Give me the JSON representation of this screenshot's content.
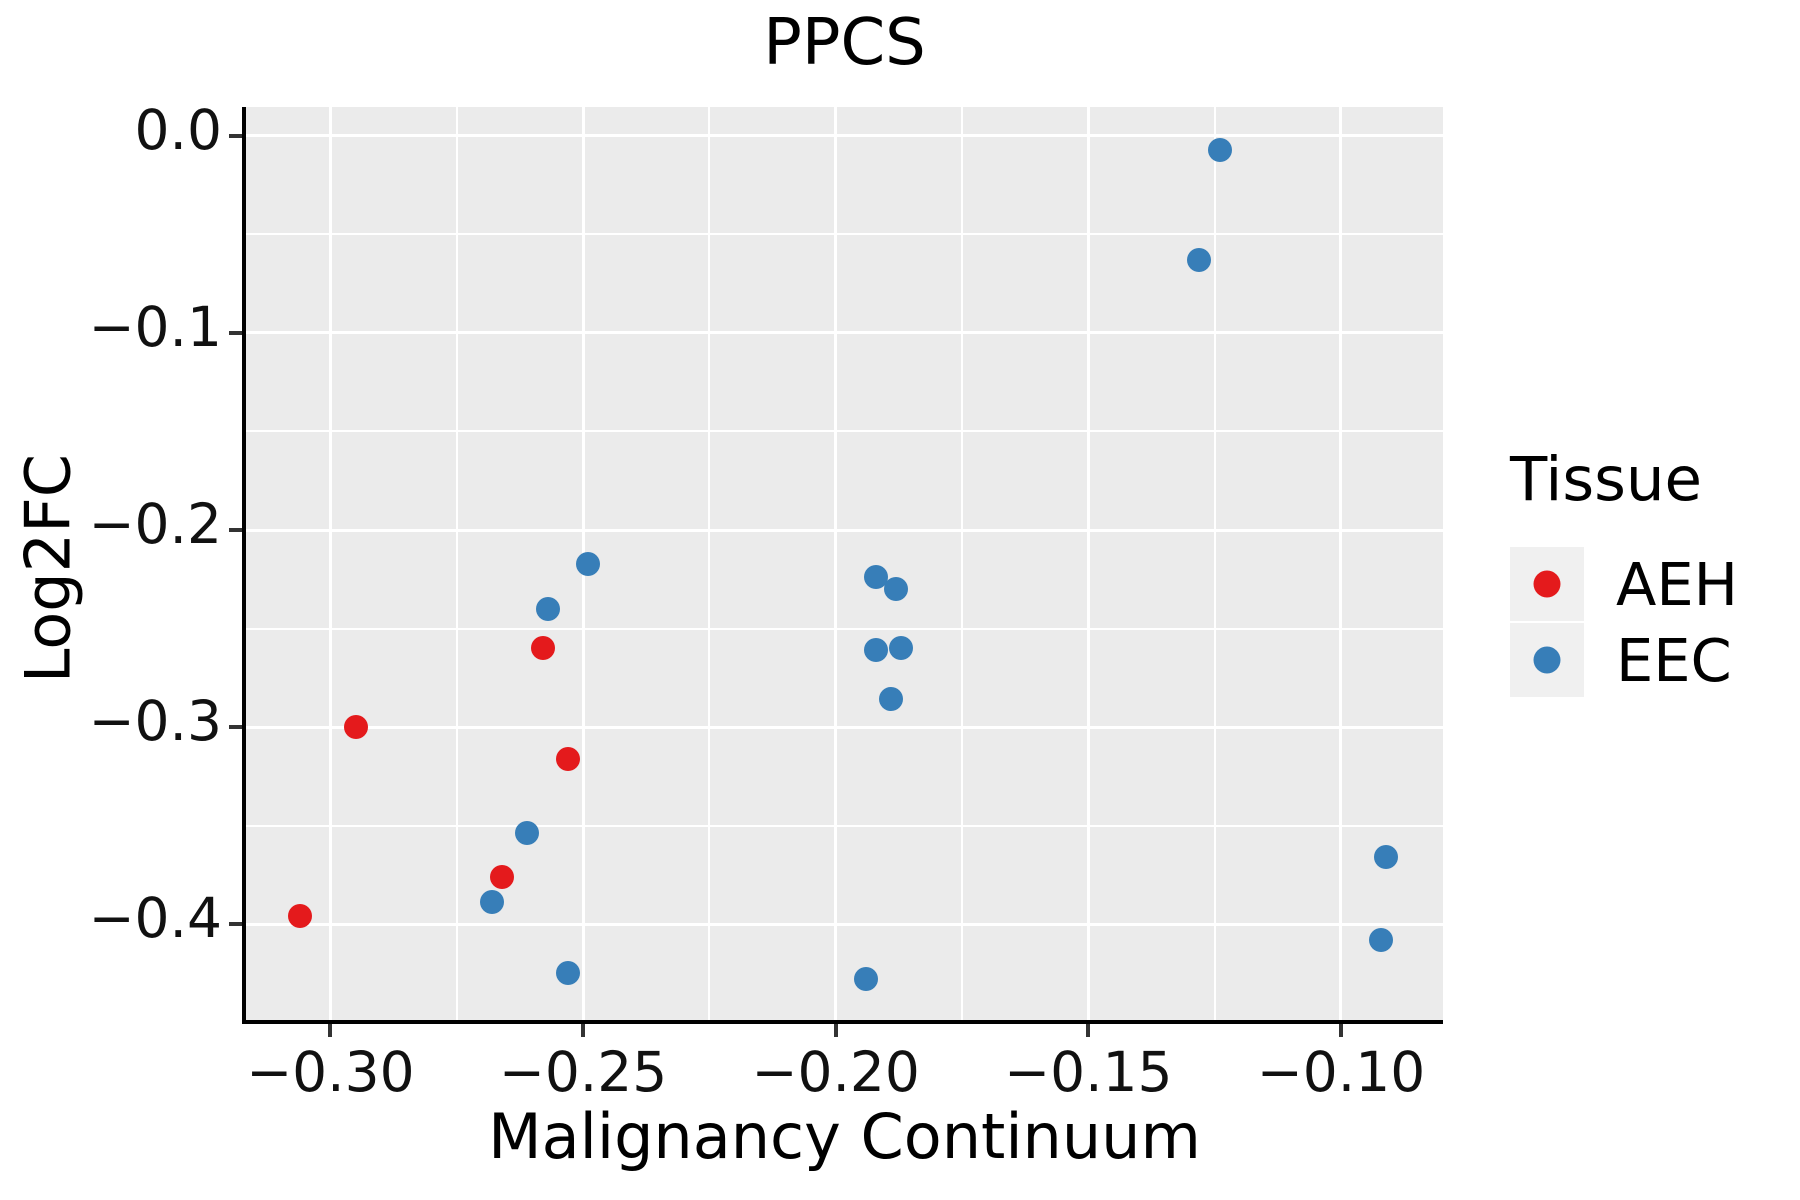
{
  "title": "PPCS",
  "axes": {
    "x": {
      "label": "Malignancy Continuum",
      "lim": [
        -0.3167,
        -0.0798
      ],
      "ticks": [
        {
          "value": -0.3,
          "label": "−0.30"
        },
        {
          "value": -0.25,
          "label": "−0.25"
        },
        {
          "value": -0.2,
          "label": "−0.20"
        },
        {
          "value": -0.15,
          "label": "−0.15"
        },
        {
          "value": -0.1,
          "label": "−0.10"
        }
      ],
      "minor": [
        -0.275,
        -0.225,
        -0.175,
        -0.125
      ]
    },
    "y": {
      "label": "Log2FC",
      "lim": [
        -0.4487,
        0.0147
      ],
      "ticks": [
        {
          "value": 0.0,
          "label": "0.0"
        },
        {
          "value": -0.1,
          "label": "−0.1"
        },
        {
          "value": -0.2,
          "label": "−0.2"
        },
        {
          "value": -0.3,
          "label": "−0.3"
        },
        {
          "value": -0.4,
          "label": "−0.4"
        }
      ],
      "minor": [
        -0.05,
        -0.15,
        -0.25,
        -0.35
      ]
    }
  },
  "legend": {
    "title": "Tissue",
    "items": [
      {
        "label": "AEH",
        "color": "#E41A1C"
      },
      {
        "label": "EEC",
        "color": "#377EB8"
      }
    ]
  },
  "colors": {
    "panel_bg": "#EBEBEB",
    "gridline": "#FFFFFF",
    "axis_line": "#000000",
    "tick_mark": "#333333",
    "legend_key_bg": "#F0F0F0",
    "aeh": "#E41A1C",
    "eec": "#377EB8"
  },
  "chart_data": {
    "type": "scatter",
    "title": "PPCS",
    "xlabel": "Malignancy Continuum",
    "ylabel": "Log2FC",
    "xlim": [
      -0.3167,
      -0.0798
    ],
    "ylim": [
      -0.4487,
      0.0147
    ],
    "grid": "major-and-minor",
    "legend_position": "right",
    "series": [
      {
        "name": "AEH",
        "color": "#E41A1C",
        "points": [
          [
            -0.306,
            -0.396
          ],
          [
            -0.295,
            -0.3
          ],
          [
            -0.266,
            -0.376
          ],
          [
            -0.258,
            -0.26
          ],
          [
            -0.253,
            -0.316
          ]
        ]
      },
      {
        "name": "EEC",
        "color": "#377EB8",
        "points": [
          [
            -0.268,
            -0.389
          ],
          [
            -0.261,
            -0.354
          ],
          [
            -0.257,
            -0.24
          ],
          [
            -0.253,
            -0.425
          ],
          [
            -0.249,
            -0.217
          ],
          [
            -0.194,
            -0.428
          ],
          [
            -0.192,
            -0.224
          ],
          [
            -0.192,
            -0.261
          ],
          [
            -0.189,
            -0.286
          ],
          [
            -0.188,
            -0.23
          ],
          [
            -0.187,
            -0.26
          ],
          [
            -0.128,
            -0.063
          ],
          [
            -0.124,
            -0.007
          ],
          [
            -0.092,
            -0.408
          ],
          [
            -0.091,
            -0.366
          ]
        ]
      }
    ]
  }
}
